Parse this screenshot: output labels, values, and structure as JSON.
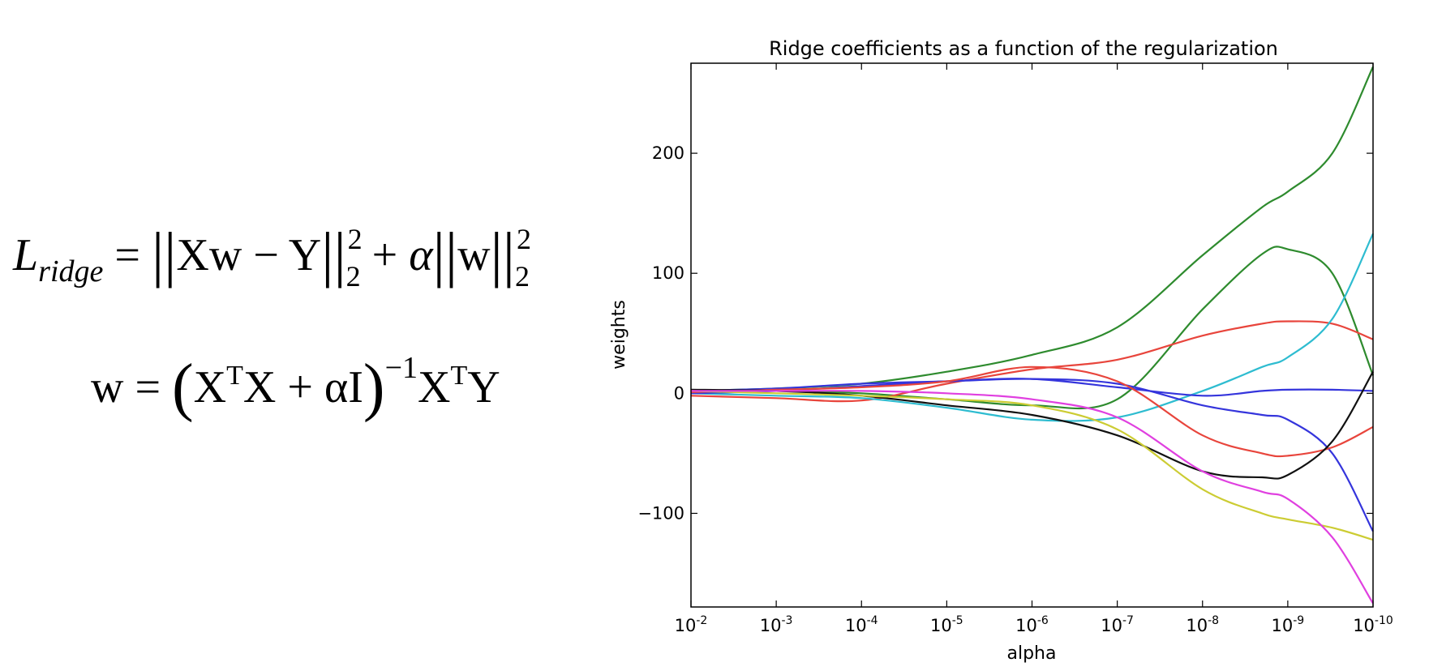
{
  "formulas": {
    "ridge_loss": {
      "lhs": "L",
      "lhs_sub": "ridge",
      "eq": " = ",
      "term1": "Xw − Y",
      "sup1": "2",
      "sub1": "2",
      "plus": " + ",
      "alpha": "α",
      "term2": "w",
      "sup2": "2",
      "sub2": "2"
    },
    "closed_form": {
      "lhs": "w = ",
      "inner": "X",
      "inner_sup": "T",
      "inner_rest": "X + αI",
      "inv": "−1",
      "rhs": "X",
      "rhs_sup": "T",
      "rhs_end": "Y"
    }
  },
  "chart_data": {
    "type": "line",
    "title": "Ridge coefficients as a function of the regularization",
    "xlabel": "alpha",
    "ylabel": "weights",
    "xscale": "log",
    "xaxis_inverted": true,
    "xlim": [
      0.01,
      1e-10
    ],
    "ylim": [
      -178,
      275
    ],
    "grid": false,
    "yticks": [
      -100,
      0,
      100,
      200
    ],
    "ytick_labels": [
      "−100",
      "0",
      "100",
      "200"
    ],
    "xticks": [
      {
        "base": "10",
        "exp": "-2",
        "value": 0.01
      },
      {
        "base": "10",
        "exp": "-3",
        "value": 0.001
      },
      {
        "base": "10",
        "exp": "-4",
        "value": 0.0001
      },
      {
        "base": "10",
        "exp": "-5",
        "value": 1e-05
      },
      {
        "base": "10",
        "exp": "-6",
        "value": 1e-06
      },
      {
        "base": "10",
        "exp": "-7",
        "value": 1e-07
      },
      {
        "base": "10",
        "exp": "-8",
        "value": 1e-08
      },
      {
        "base": "10",
        "exp": "-9",
        "value": 1e-09
      },
      {
        "base": "10",
        "exp": "-10",
        "value": 1e-10
      }
    ],
    "x": [
      0.01,
      0.001,
      0.0001,
      1e-05,
      1e-06,
      1e-07,
      1e-08,
      2e-09,
      1e-09,
      3e-10,
      1e-10
    ],
    "series": [
      {
        "color": "#2e8b2e",
        "values": [
          2,
          4,
          8,
          18,
          32,
          55,
          115,
          155,
          168,
          200,
          272
        ]
      },
      {
        "color": "#2e8b2e",
        "values": [
          1,
          2,
          0,
          -5,
          -10,
          -5,
          70,
          116,
          120,
          100,
          15
        ]
      },
      {
        "color": "#e8453c",
        "values": [
          -2,
          -4,
          -6,
          8,
          20,
          28,
          48,
          58,
          60,
          58,
          45
        ]
      },
      {
        "color": "#2ebcd0",
        "values": [
          0,
          -2,
          -4,
          -12,
          -22,
          -20,
          2,
          22,
          30,
          62,
          133
        ]
      },
      {
        "color": "#3535dc",
        "values": [
          0,
          2,
          6,
          10,
          12,
          5,
          -2,
          2,
          3,
          3,
          2
        ]
      },
      {
        "color": "#3535dc",
        "values": [
          2,
          4,
          8,
          10,
          12,
          8,
          -10,
          -18,
          -22,
          -50,
          -115
        ]
      },
      {
        "color": "#e8453c",
        "values": [
          1,
          3,
          5,
          10,
          22,
          10,
          -35,
          -50,
          -52,
          -45,
          -28
        ]
      },
      {
        "color": "#111111",
        "values": [
          3,
          2,
          -2,
          -10,
          -18,
          -35,
          -65,
          -70,
          -68,
          -40,
          18
        ]
      },
      {
        "color": "#cccc33",
        "values": [
          2,
          0,
          -2,
          -5,
          -10,
          -30,
          -80,
          -100,
          -105,
          -112,
          -122
        ]
      },
      {
        "color": "#e040e0",
        "values": [
          2,
          2,
          2,
          0,
          -5,
          -20,
          -65,
          -82,
          -88,
          -120,
          -175
        ]
      }
    ]
  }
}
